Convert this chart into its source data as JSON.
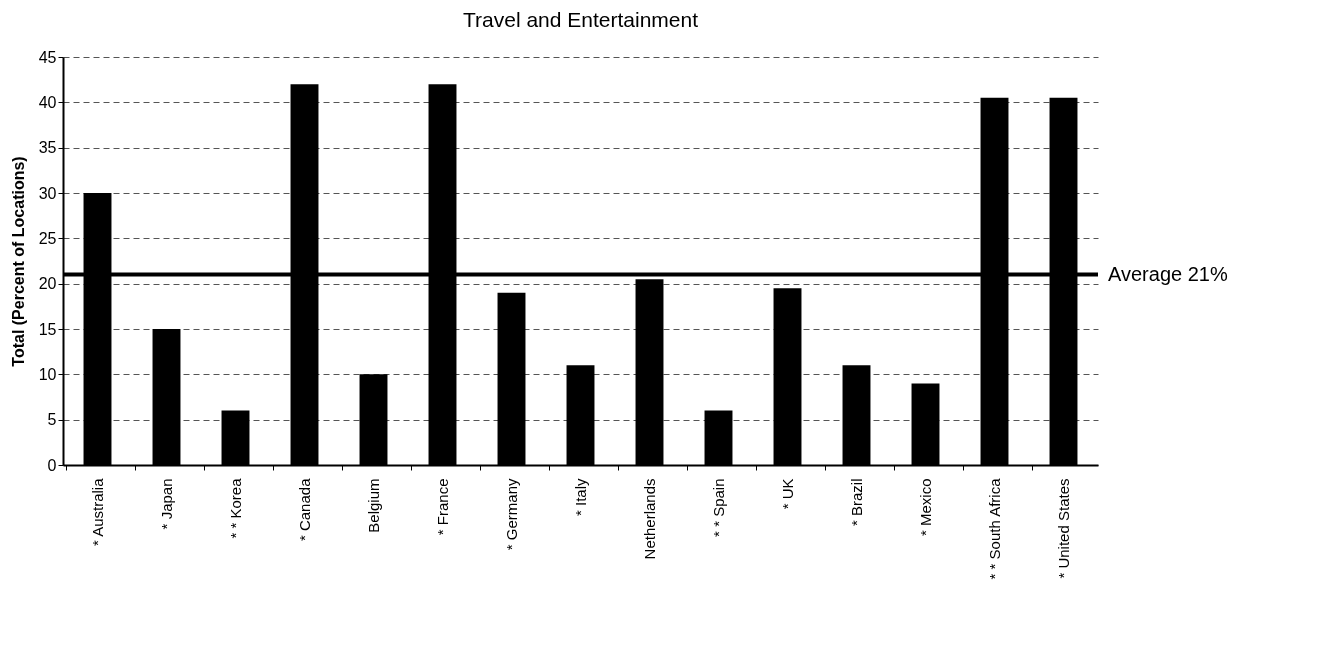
{
  "chart_data": {
    "type": "bar",
    "title": "Travel and Entertainment",
    "ylabel": "Total (Percent of Locations)",
    "categories": [
      "* Australia",
      "* Japan",
      "* * Korea",
      "* Canada",
      "Belgium",
      "* France",
      "* Germany",
      "* Italy",
      "Netherlands",
      "* * Spain",
      "* UK",
      "* Brazil",
      "* Mexico",
      "* * South Africa",
      "* United States"
    ],
    "values": [
      30,
      15,
      6,
      42,
      10,
      42,
      19,
      11,
      20.5,
      6,
      19.5,
      11,
      9,
      40.5,
      40.5
    ],
    "color": "#000000",
    "ylim": [
      0,
      45
    ],
    "yticks": [
      0,
      5,
      10,
      15,
      20,
      25,
      30,
      35,
      40,
      45
    ],
    "grid": "y",
    "ref_lines": [
      {
        "axis": "y",
        "value": 21,
        "label": "Average  21%",
        "color": "#000000"
      }
    ]
  }
}
